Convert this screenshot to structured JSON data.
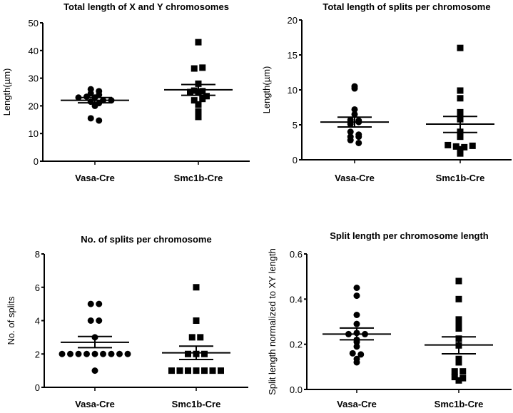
{
  "chart_data": [
    {
      "type": "scatter",
      "title": "Total length of X and Y chromosomes",
      "ylabel": "Length(µm)",
      "ylim": [
        0,
        50
      ],
      "yticks": [
        0,
        10,
        20,
        30,
        40,
        50
      ],
      "categories": [
        "Vasa-Cre",
        "Smc1b-Cre"
      ],
      "series": [
        {
          "name": "Vasa-Cre",
          "marker": "circle",
          "values": [
            26,
            24.5,
            23,
            23.3,
            24,
            25.3,
            23,
            21.5,
            21,
            20,
            22,
            22,
            15.5,
            14.7
          ],
          "mean": 22,
          "sem": [
            21.1,
            23
          ]
        },
        {
          "name": "Smc1b-Cre",
          "marker": "square",
          "values": [
            43,
            33.5,
            33.8,
            28,
            25.5,
            25,
            24.8,
            23.5,
            25.3,
            22,
            22.5,
            20.5,
            18,
            16
          ],
          "mean": 25.8,
          "sem": [
            23.8,
            27.7
          ]
        }
      ]
    },
    {
      "type": "scatter",
      "title": "Total length of splits per chromosome",
      "ylabel": "Length(µm)",
      "ylim": [
        0,
        20
      ],
      "yticks": [
        0,
        5,
        10,
        15,
        20
      ],
      "categories": [
        "Vasa-Cre",
        "Smc1b-Cre"
      ],
      "series": [
        {
          "name": "Vasa-Cre",
          "marker": "circle",
          "values": [
            10.2,
            10.5,
            7.2,
            6.5,
            5.7,
            5.6,
            5.1,
            5.4,
            4,
            3.6,
            3.3,
            3.3,
            2.8,
            2.4
          ],
          "mean": 5.4,
          "sem": [
            4.7,
            6.1
          ]
        },
        {
          "name": "Smc1b-Cre",
          "marker": "square",
          "values": [
            16,
            9.9,
            8.8,
            6.8,
            6.5,
            5.8,
            4,
            3.3,
            2.1,
            1.9,
            1.8,
            1.5,
            0.9,
            2
          ],
          "mean": 5.1,
          "sem": [
            3.9,
            6.2
          ]
        }
      ]
    },
    {
      "type": "scatter",
      "title": "No. of splits per chromosome",
      "ylabel": "No. of splits",
      "ylim": [
        0,
        8
      ],
      "yticks": [
        0,
        2,
        4,
        6,
        8
      ],
      "categories": [
        "Vasa-Cre",
        "Smc1b-Cre"
      ],
      "series": [
        {
          "name": "Vasa-Cre",
          "marker": "circle",
          "values": [
            5,
            5,
            4,
            4,
            3,
            2,
            2,
            2,
            2,
            2,
            2,
            2,
            2,
            2,
            1
          ],
          "mean": 2.7,
          "sem": [
            2.38,
            3.05
          ]
        },
        {
          "name": "Smc1b-Cre",
          "marker": "square",
          "values": [
            6,
            4,
            3,
            3,
            2,
            2,
            2,
            1,
            1,
            1,
            1,
            1,
            1,
            1
          ],
          "mean": 2.07,
          "sem": [
            1.67,
            2.47
          ]
        }
      ]
    },
    {
      "type": "scatter",
      "title": "Split length per chromosome length",
      "ylabel": "Split length normalized to XY length",
      "ylim": [
        0,
        0.6
      ],
      "yticks": [
        "0.0",
        "0.2",
        "0.4",
        "0.6"
      ],
      "categories": [
        "Vasa-Cre",
        "Smc1b-Cre"
      ],
      "series": [
        {
          "name": "Vasa-Cre",
          "marker": "circle",
          "values": [
            0.45,
            0.415,
            0.33,
            0.29,
            0.245,
            0.25,
            0.245,
            0.21,
            0.22,
            0.19,
            0.16,
            0.155,
            0.135,
            0.12
          ],
          "mean": 0.245,
          "sem": [
            0.22,
            0.272
          ]
        },
        {
          "name": "Smc1b-Cre",
          "marker": "square",
          "values": [
            0.48,
            0.4,
            0.31,
            0.29,
            0.27,
            0.225,
            0.195,
            0.135,
            0.12,
            0.08,
            0.08,
            0.055,
            0.05,
            0.04
          ],
          "mean": 0.197,
          "sem": [
            0.158,
            0.233
          ]
        }
      ]
    }
  ]
}
